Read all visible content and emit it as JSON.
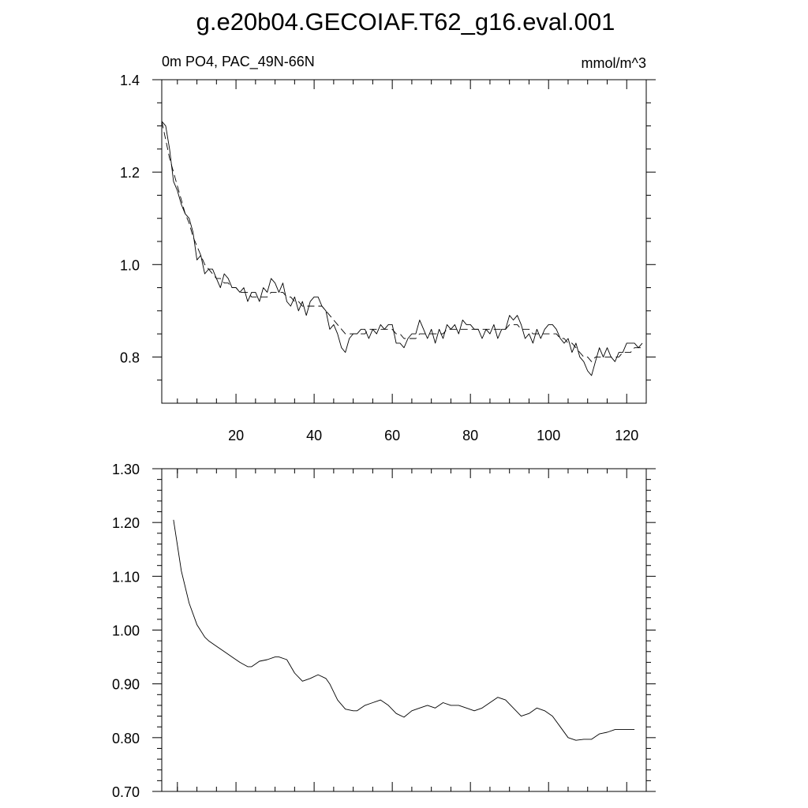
{
  "title": "g.e20b04.GECOIAF.T62_g16.eval.001",
  "chart_data": [
    {
      "type": "line",
      "subtitle_left": "0m PO4, PAC_49N-66N",
      "subtitle_right": "mmol/m^3",
      "xlim": [
        1,
        125
      ],
      "ylim": [
        0.7,
        1.4
      ],
      "x_ticks": [
        20,
        40,
        60,
        80,
        100,
        120
      ],
      "x_tick_labels": [
        "20",
        "40",
        "60",
        "80",
        "100",
        "120"
      ],
      "y_ticks": [
        0.8,
        1.0,
        1.2,
        1.4
      ],
      "y_tick_labels": [
        "0.8",
        "1.0",
        "1.2",
        "1.4"
      ],
      "grid": false,
      "series": [
        {
          "style": "solid",
          "x": [
            1,
            2,
            3,
            4,
            5,
            6,
            7,
            8,
            9,
            10,
            11,
            12,
            13,
            14,
            15,
            16,
            17,
            18,
            19,
            20,
            21,
            22,
            23,
            24,
            25,
            26,
            27,
            28,
            29,
            30,
            31,
            32,
            33,
            34,
            35,
            36,
            37,
            38,
            39,
            40,
            41,
            42,
            43,
            44,
            45,
            46,
            47,
            48,
            49,
            50,
            51,
            52,
            53,
            54,
            55,
            56,
            57,
            58,
            59,
            60,
            61,
            62,
            63,
            64,
            65,
            66,
            67,
            68,
            69,
            70,
            71,
            72,
            73,
            74,
            75,
            76,
            77,
            78,
            79,
            80,
            81,
            82,
            83,
            84,
            85,
            86,
            87,
            88,
            89,
            90,
            91,
            92,
            93,
            94,
            95,
            96,
            97,
            98,
            99,
            100,
            101,
            102,
            103,
            104,
            105,
            106,
            107,
            108,
            109,
            110,
            111,
            112,
            113,
            114,
            115,
            116,
            117,
            118,
            119,
            120,
            121,
            122,
            123,
            124
          ],
          "y": [
            1.31,
            1.3,
            1.25,
            1.18,
            1.16,
            1.13,
            1.11,
            1.1,
            1.07,
            1.01,
            1.02,
            0.98,
            0.99,
            0.99,
            0.97,
            0.95,
            0.98,
            0.97,
            0.95,
            0.95,
            0.94,
            0.95,
            0.92,
            0.94,
            0.94,
            0.92,
            0.95,
            0.94,
            0.97,
            0.96,
            0.94,
            0.96,
            0.92,
            0.91,
            0.93,
            0.9,
            0.92,
            0.89,
            0.92,
            0.93,
            0.93,
            0.91,
            0.9,
            0.86,
            0.87,
            0.85,
            0.82,
            0.81,
            0.84,
            0.85,
            0.85,
            0.86,
            0.86,
            0.84,
            0.86,
            0.85,
            0.87,
            0.86,
            0.87,
            0.87,
            0.83,
            0.83,
            0.82,
            0.84,
            0.85,
            0.85,
            0.88,
            0.86,
            0.84,
            0.86,
            0.83,
            0.86,
            0.84,
            0.87,
            0.86,
            0.87,
            0.85,
            0.88,
            0.87,
            0.87,
            0.86,
            0.86,
            0.84,
            0.86,
            0.85,
            0.87,
            0.84,
            0.86,
            0.86,
            0.89,
            0.88,
            0.89,
            0.87,
            0.84,
            0.85,
            0.83,
            0.86,
            0.84,
            0.86,
            0.87,
            0.87,
            0.86,
            0.84,
            0.83,
            0.84,
            0.81,
            0.83,
            0.8,
            0.79,
            0.77,
            0.76,
            0.79,
            0.82,
            0.8,
            0.82,
            0.8,
            0.79,
            0.81,
            0.81,
            0.83,
            0.83,
            0.83,
            0.82,
            0.83
          ]
        },
        {
          "style": "dashed",
          "x": [
            1,
            2,
            3,
            4,
            5,
            6,
            7,
            8,
            9,
            10,
            11,
            12,
            13,
            14,
            15,
            16,
            17,
            18,
            19,
            20,
            21,
            22,
            23,
            24,
            25,
            26,
            27,
            28,
            29,
            30,
            31,
            32,
            33,
            34,
            35,
            36,
            37,
            38,
            39,
            40,
            41,
            42,
            43,
            44,
            45,
            46,
            47,
            48,
            49,
            50,
            51,
            52,
            53,
            54,
            55,
            56,
            57,
            58,
            59,
            60,
            61,
            62,
            63,
            64,
            65,
            66,
            67,
            68,
            69,
            70,
            71,
            72,
            73,
            74,
            75,
            76,
            77,
            78,
            79,
            80,
            81,
            82,
            83,
            84,
            85,
            86,
            87,
            88,
            89,
            90,
            91,
            92,
            93,
            94,
            95,
            96,
            97,
            98,
            99,
            100,
            101,
            102,
            103,
            104,
            105,
            106,
            107,
            108,
            109,
            110,
            111,
            112,
            113,
            114,
            115,
            116,
            117,
            118,
            119,
            120,
            121,
            122,
            123,
            124
          ],
          "y": [
            1.31,
            1.27,
            1.23,
            1.2,
            1.17,
            1.14,
            1.11,
            1.09,
            1.06,
            1.04,
            1.02,
            1.0,
            0.99,
            0.98,
            0.97,
            0.97,
            0.96,
            0.96,
            0.95,
            0.95,
            0.94,
            0.94,
            0.94,
            0.93,
            0.93,
            0.93,
            0.93,
            0.93,
            0.94,
            0.94,
            0.94,
            0.94,
            0.93,
            0.93,
            0.92,
            0.92,
            0.91,
            0.91,
            0.91,
            0.91,
            0.91,
            0.91,
            0.9,
            0.89,
            0.88,
            0.87,
            0.86,
            0.85,
            0.85,
            0.85,
            0.85,
            0.85,
            0.85,
            0.86,
            0.86,
            0.86,
            0.86,
            0.86,
            0.86,
            0.86,
            0.85,
            0.85,
            0.84,
            0.84,
            0.84,
            0.84,
            0.85,
            0.85,
            0.85,
            0.85,
            0.85,
            0.85,
            0.85,
            0.86,
            0.86,
            0.86,
            0.86,
            0.86,
            0.86,
            0.86,
            0.86,
            0.86,
            0.86,
            0.86,
            0.86,
            0.86,
            0.86,
            0.86,
            0.86,
            0.87,
            0.87,
            0.87,
            0.86,
            0.86,
            0.86,
            0.85,
            0.85,
            0.85,
            0.85,
            0.85,
            0.85,
            0.85,
            0.84,
            0.84,
            0.83,
            0.83,
            0.82,
            0.81,
            0.8,
            0.8,
            0.79,
            0.8,
            0.8,
            0.8,
            0.8,
            0.8,
            0.8,
            0.8,
            0.81,
            0.81,
            0.81,
            0.82,
            0.82,
            0.82
          ]
        }
      ]
    },
    {
      "type": "line",
      "xlim": [
        1,
        125
      ],
      "ylim": [
        0.7,
        1.3
      ],
      "x_ticks": [
        5,
        20,
        40,
        60,
        80,
        100,
        120
      ],
      "y_ticks": [
        0.7,
        0.8,
        0.9,
        1.0,
        1.1,
        1.2,
        1.3
      ],
      "y_tick_labels": [
        "0.70",
        "0.80",
        "0.90",
        "1.00",
        "1.10",
        "1.20",
        "1.30"
      ],
      "grid": false,
      "series": [
        {
          "style": "solid",
          "x": [
            4,
            6,
            8,
            10,
            12,
            13,
            15,
            17,
            19,
            21,
            23,
            24,
            26,
            28,
            30,
            31,
            33,
            35,
            37,
            39,
            41,
            43,
            44,
            46,
            48,
            50,
            51,
            53,
            55,
            57,
            59,
            61,
            63,
            65,
            67,
            69,
            71,
            73,
            75,
            77,
            79,
            81,
            83,
            85,
            87,
            89,
            91,
            93,
            95,
            97,
            99,
            101,
            103,
            105,
            107,
            109,
            111,
            113,
            115,
            117,
            119,
            121,
            122
          ],
          "y": [
            1.205,
            1.11,
            1.05,
            1.01,
            0.987,
            0.98,
            0.97,
            0.96,
            0.95,
            0.94,
            0.932,
            0.932,
            0.942,
            0.945,
            0.95,
            0.95,
            0.945,
            0.92,
            0.905,
            0.91,
            0.917,
            0.91,
            0.9,
            0.87,
            0.853,
            0.85,
            0.85,
            0.86,
            0.865,
            0.87,
            0.86,
            0.845,
            0.838,
            0.85,
            0.855,
            0.86,
            0.855,
            0.865,
            0.86,
            0.86,
            0.855,
            0.85,
            0.855,
            0.865,
            0.875,
            0.87,
            0.855,
            0.84,
            0.845,
            0.855,
            0.85,
            0.84,
            0.82,
            0.8,
            0.795,
            0.797,
            0.797,
            0.807,
            0.81,
            0.815,
            0.815,
            0.815,
            0.815
          ]
        }
      ]
    }
  ]
}
